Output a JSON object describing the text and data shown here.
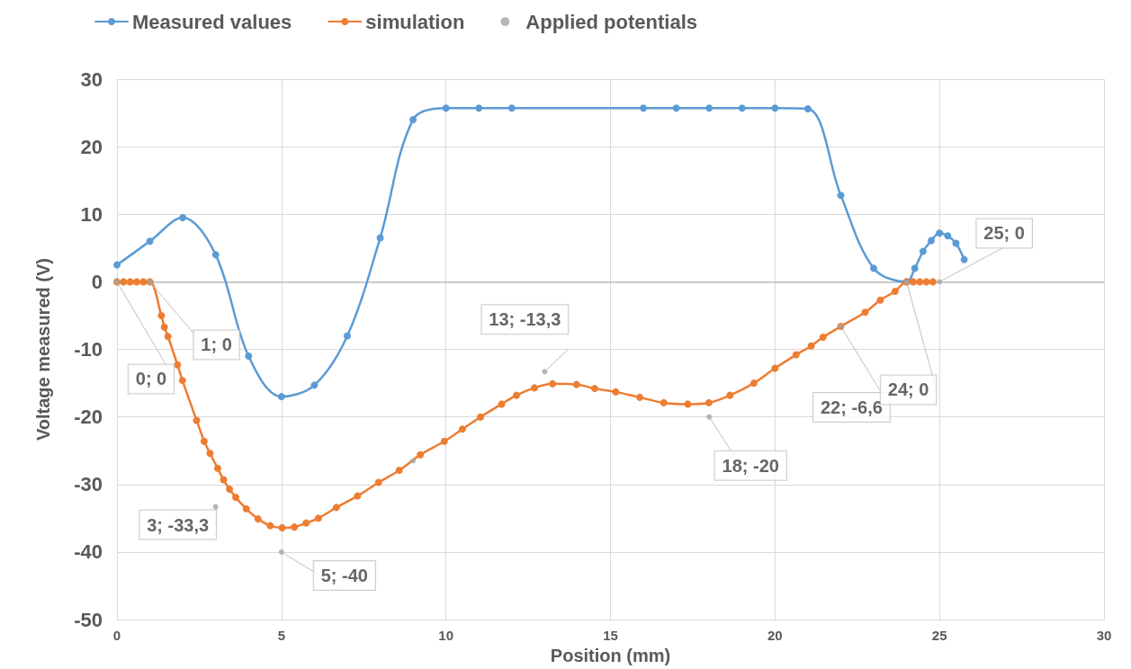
{
  "chart_data": {
    "type": "line",
    "xlabel": "Position (mm)",
    "ylabel": "Voltage measured (V)",
    "xlim": [
      0,
      30
    ],
    "xticks": [
      0,
      5,
      10,
      15,
      20,
      25,
      30
    ],
    "ylim": [
      -50,
      30
    ],
    "yticks": [
      -50,
      -40,
      -30,
      -20,
      -10,
      0,
      10,
      20,
      30
    ],
    "grid": true,
    "legend": "top left",
    "marker": "circle",
    "line_style": "solid",
    "series": [
      {
        "name": "Measured values",
        "color": "#5b9bd5",
        "x": [
          0,
          1,
          2,
          3,
          4,
          5,
          6,
          7,
          8,
          9,
          10,
          11,
          12,
          16,
          17,
          18,
          19,
          20,
          21,
          22,
          23,
          24,
          24.25,
          24.5,
          24.75,
          25,
          25.25,
          25.5,
          25.75
        ],
        "values": [
          2.5,
          6,
          9.5,
          4,
          -11,
          -17,
          -15.3,
          -8,
          6.5,
          24,
          25.7,
          25.7,
          25.7,
          25.7,
          25.7,
          25.7,
          25.7,
          25.7,
          25.6,
          12.8,
          2,
          0,
          2,
          4.5,
          6.1,
          7.2,
          6.8,
          5.7,
          3.3
        ]
      },
      {
        "name": "simulation",
        "color": "#ed7d31",
        "x": [
          0,
          0.2,
          0.4,
          0.6,
          0.8,
          1,
          1.35,
          1.44,
          1.55,
          1.84,
          1.99,
          2.42,
          2.65,
          2.83,
          3.06,
          3.24,
          3.42,
          3.61,
          3.93,
          4.29,
          4.66,
          5.02,
          5.39,
          5.75,
          6.12,
          6.67,
          7.31,
          7.95,
          8.58,
          9.22,
          9.95,
          10.5,
          11.05,
          11.69,
          12.14,
          12.69,
          13.24,
          13.97,
          14.52,
          15.16,
          15.89,
          16.62,
          17.35,
          17.99,
          18.63,
          19.36,
          20,
          20.64,
          21.1,
          21.46,
          22,
          22.74,
          23.2,
          23.65,
          24,
          24.2,
          24.4,
          24.6,
          24.8
        ],
        "values": [
          0,
          0,
          0,
          0,
          0,
          0,
          -5,
          -6.7,
          -8.1,
          -12.3,
          -14.6,
          -20.5,
          -23.6,
          -25.4,
          -27.6,
          -29.3,
          -30.7,
          -31.9,
          -33.6,
          -35.1,
          -36.1,
          -36.4,
          -36.3,
          -35.7,
          -35,
          -33.4,
          -31.7,
          -29.7,
          -27.9,
          -25.6,
          -23.6,
          -21.8,
          -20,
          -18.1,
          -16.8,
          -15.7,
          -15.1,
          -15.2,
          -15.8,
          -16.3,
          -17.1,
          -17.9,
          -18.1,
          -17.9,
          -16.8,
          -15,
          -12.8,
          -10.8,
          -9.5,
          -8.2,
          -6.6,
          -4.5,
          -2.7,
          -1.4,
          0,
          0,
          0,
          0,
          0
        ]
      },
      {
        "name": "Applied potentials",
        "type": "scatter",
        "color": "#a5a5a5",
        "x": [
          0,
          1,
          3,
          5,
          9,
          13,
          18,
          22,
          24,
          25
        ],
        "values": [
          0,
          0,
          -33.3,
          -40,
          -26.5,
          -13.3,
          -20,
          -6.6,
          0,
          0
        ],
        "value_labels": [
          "0; 0",
          "1; 0",
          "3; -33,3",
          "5; -40",
          null,
          "13; -13,3",
          "18; -20",
          "22; -6,6",
          "24; 0",
          "25; 0"
        ]
      }
    ]
  }
}
